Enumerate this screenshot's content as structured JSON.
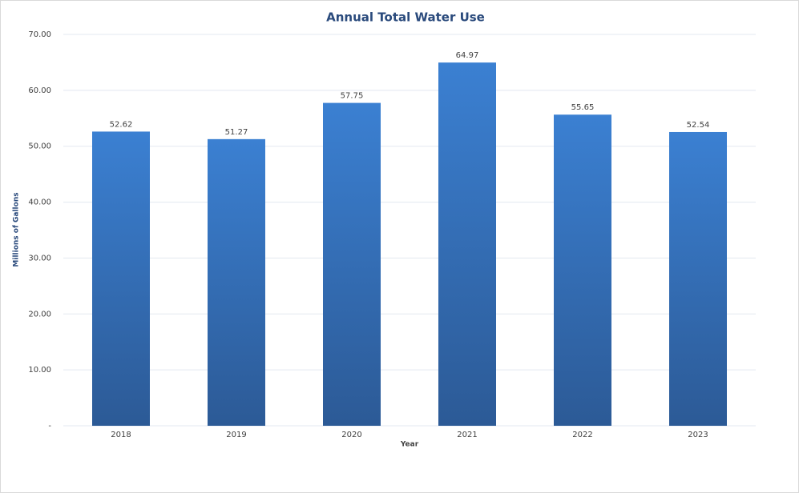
{
  "chart_data": {
    "type": "bar",
    "title": "Annual Total Water Use",
    "x_label": "Year",
    "y_label": "Millions of Gallons",
    "categories": [
      "2018",
      "2019",
      "2020",
      "2021",
      "2022",
      "2023"
    ],
    "values": [
      52.62,
      51.27,
      57.75,
      64.97,
      55.65,
      52.54
    ],
    "color": "#3b80d2",
    "color_bottom": "#2c5a96",
    "ylim": [
      0,
      70
    ],
    "yticks": [
      {
        "value": 0,
        "label": "-"
      },
      {
        "value": 10,
        "label": "10.00"
      },
      {
        "value": 20,
        "label": "20.00"
      },
      {
        "value": 30,
        "label": "30.00"
      },
      {
        "value": 40,
        "label": "40.00"
      },
      {
        "value": 50,
        "label": "50.00"
      },
      {
        "value": 60,
        "label": "60.00"
      },
      {
        "value": 70,
        "label": "70.00"
      }
    ],
    "grid": true
  }
}
